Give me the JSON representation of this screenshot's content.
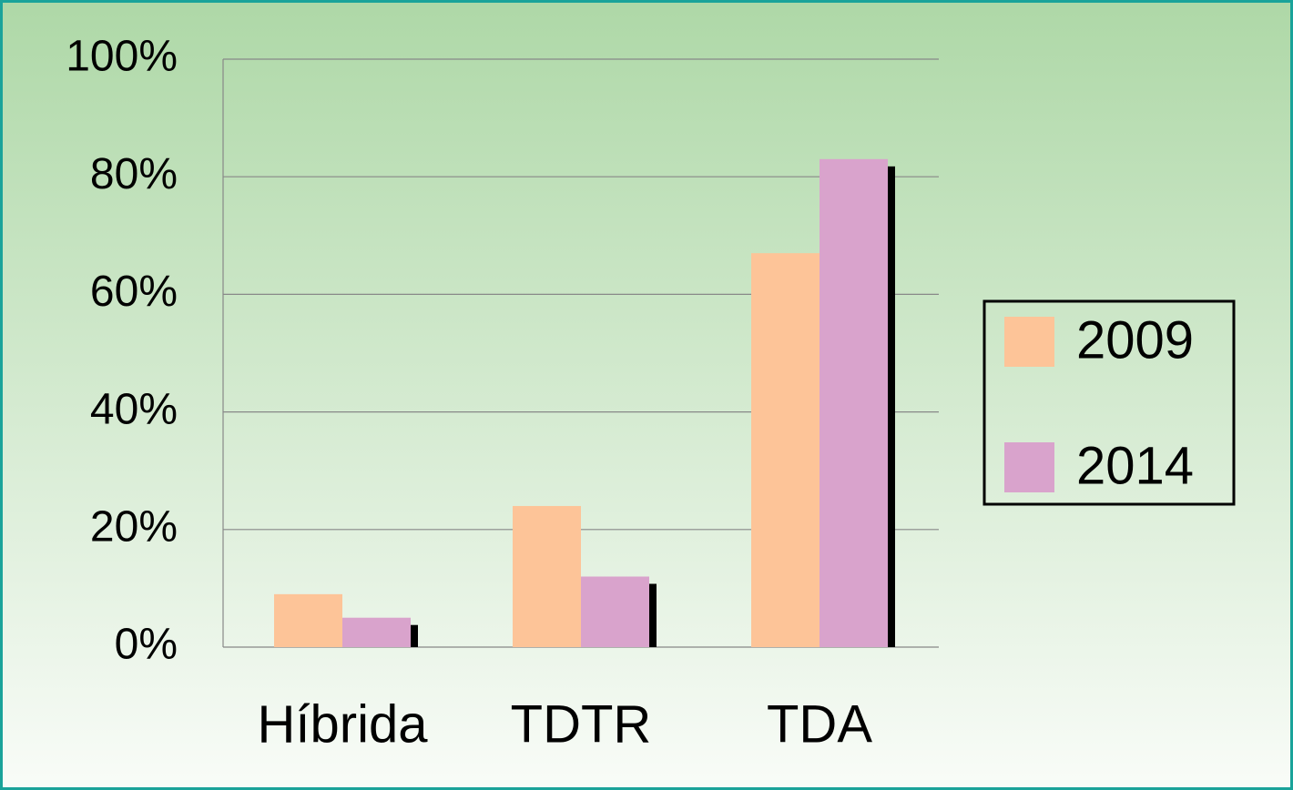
{
  "chart_data": {
    "type": "bar",
    "categories": [
      "Híbrida",
      "TDTR",
      "TDA"
    ],
    "series": [
      {
        "name": "2009",
        "color": "#fdc498",
        "values": [
          9,
          24,
          67
        ]
      },
      {
        "name": "2014",
        "color": "#d9a3cc",
        "values": [
          5,
          12,
          83
        ]
      }
    ],
    "ylim": [
      0,
      100
    ],
    "yticks": [
      {
        "value": 0,
        "label": "0%"
      },
      {
        "value": 20,
        "label": "20%"
      },
      {
        "value": 40,
        "label": "40%"
      },
      {
        "value": 60,
        "label": "60%"
      },
      {
        "value": 80,
        "label": "80%"
      },
      {
        "value": 100,
        "label": "100%"
      }
    ],
    "grid": true,
    "legend": "right"
  }
}
